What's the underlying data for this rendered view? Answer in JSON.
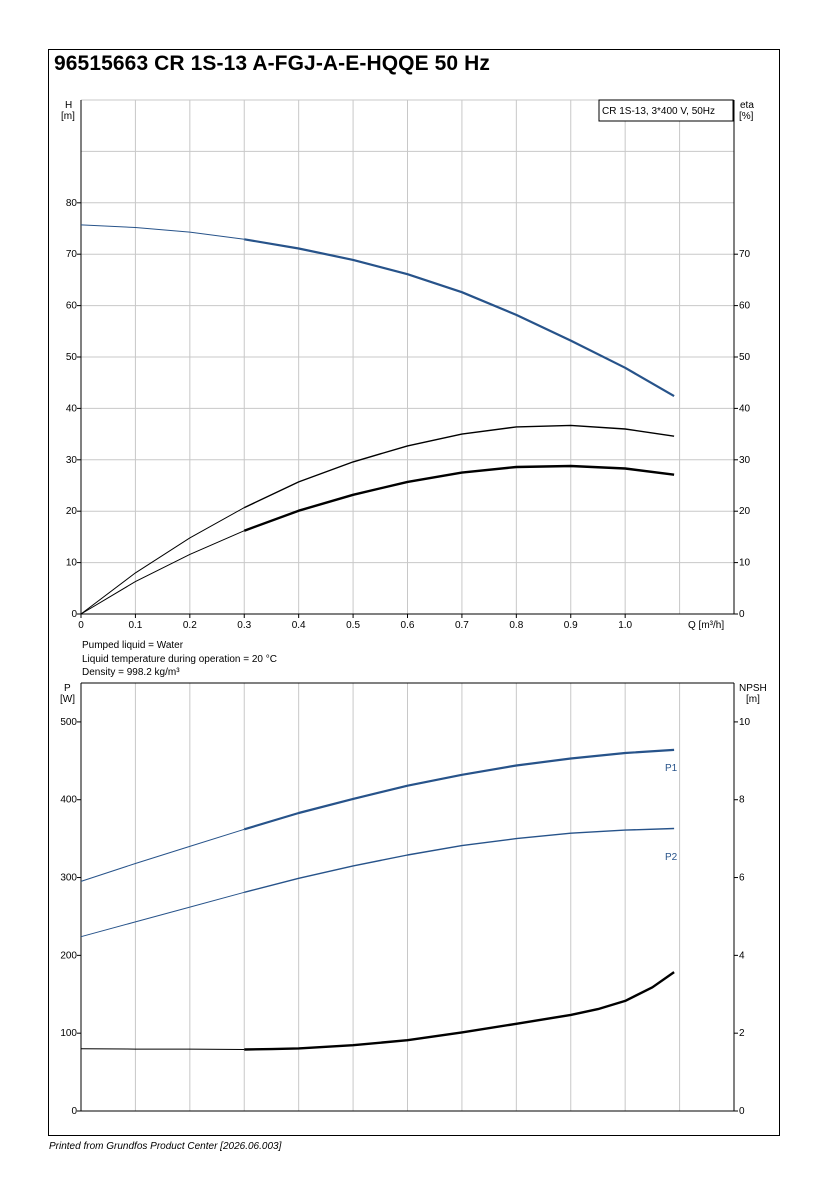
{
  "page": {
    "title": "96515663 CR 1S-13 A-FGJ-A-E-HQQE 50 Hz",
    "footer": "Printed from Grundfos Product Center [2026.06.003]"
  },
  "colors": {
    "blue": "#27538a",
    "black": "#000000",
    "grid": "#c8c8c8"
  },
  "notes": [
    "Pumped liquid = Water",
    "Liquid temperature during operation = 20 °C",
    "Density = 998.2 kg/m³"
  ],
  "chart_data": [
    {
      "type": "line",
      "legend_box": "CR 1S-13, 3*400 V, 50Hz",
      "xlabel": "Q [m³/h]",
      "ylabel_left": {
        "name": "H",
        "unit": "[m]"
      },
      "ylabel_right": {
        "name": "eta",
        "unit": "[%]"
      },
      "x_ticks": [
        "0",
        "0.1",
        "0.2",
        "0.3",
        "0.4",
        "0.5",
        "0.6",
        "0.7",
        "0.8",
        "0.9",
        "1.0"
      ],
      "y_left_ticks": [
        "0",
        "10",
        "20",
        "30",
        "40",
        "50",
        "60",
        "70",
        "80"
      ],
      "y_right_ticks": [
        "0",
        "10",
        "20",
        "30",
        "40",
        "50",
        "60",
        "70"
      ],
      "xlim": [
        0,
        1.2
      ],
      "ylim": [
        0,
        100
      ],
      "operating_range_start": 0.3,
      "series": [
        {
          "axis": "left",
          "color": "blue",
          "x": [
            0,
            0.1,
            0.2,
            0.3,
            0.4,
            0.5,
            0.6,
            0.7,
            0.8,
            0.9,
            1.0,
            1.09
          ],
          "y": [
            75.7,
            75.2,
            74.3,
            72.9,
            71.1,
            68.9,
            66.1,
            62.6,
            58.2,
            53.2,
            47.9,
            42.4
          ]
        },
        {
          "axis": "right",
          "color": "black",
          "x": [
            0,
            0.1,
            0.2,
            0.3,
            0.4,
            0.5,
            0.6,
            0.7,
            0.8,
            0.9,
            1.0,
            1.09
          ],
          "y": [
            0,
            8.0,
            14.8,
            20.7,
            25.7,
            29.6,
            32.7,
            35.0,
            36.4,
            36.7,
            36.0,
            34.6
          ]
        },
        {
          "axis": "right",
          "color": "black",
          "x": [
            0,
            0.1,
            0.2,
            0.3,
            0.4,
            0.5,
            0.6,
            0.7,
            0.8,
            0.9,
            1.0,
            1.09
          ],
          "y": [
            0,
            6.3,
            11.6,
            16.2,
            20.1,
            23.2,
            25.7,
            27.5,
            28.6,
            28.8,
            28.3,
            27.1
          ]
        }
      ]
    },
    {
      "type": "line",
      "xlim": [
        0,
        1.2
      ],
      "ylabel_left": {
        "name": "P",
        "unit": "[W]"
      },
      "ylabel_right": {
        "name": "NPSH",
        "unit": "[m]"
      },
      "y_left_ticks": [
        "0",
        "100",
        "200",
        "300",
        "400",
        "500"
      ],
      "y_right_ticks": [
        "0",
        "2",
        "4",
        "6",
        "8",
        "10"
      ],
      "ylim_left": [
        0,
        550
      ],
      "ylim_right": [
        0,
        11
      ],
      "operating_range_start": 0.3,
      "series": [
        {
          "name": "P1",
          "axis": "left",
          "color": "blue",
          "x": [
            0,
            0.1,
            0.2,
            0.3,
            0.4,
            0.5,
            0.6,
            0.7,
            0.8,
            0.9,
            1.0,
            1.09
          ],
          "y": [
            295,
            318,
            340,
            362,
            383,
            401,
            418,
            432,
            444,
            453,
            460,
            464
          ]
        },
        {
          "name": "P2",
          "axis": "left",
          "color": "blue",
          "x": [
            0,
            0.1,
            0.2,
            0.3,
            0.4,
            0.5,
            0.6,
            0.7,
            0.8,
            0.9,
            1.0,
            1.09
          ],
          "y": [
            224,
            243,
            262,
            281,
            299,
            315,
            329,
            341,
            350,
            357,
            361,
            363
          ]
        },
        {
          "axis": "right",
          "color": "black",
          "x": [
            0,
            0.1,
            0.2,
            0.3,
            0.35,
            0.4,
            0.5,
            0.6,
            0.7,
            0.8,
            0.9,
            0.95,
            1.0,
            1.05,
            1.09
          ],
          "y": [
            1.6,
            1.59,
            1.59,
            1.58,
            1.59,
            1.61,
            1.69,
            1.82,
            2.02,
            2.24,
            2.47,
            2.62,
            2.83,
            3.18,
            3.57
          ]
        }
      ]
    }
  ]
}
